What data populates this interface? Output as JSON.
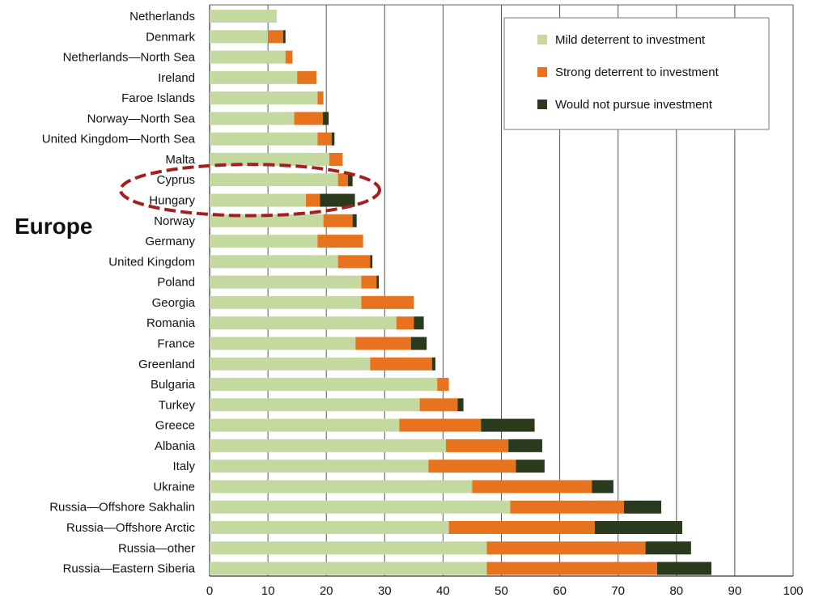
{
  "colors": {
    "mild": "#c4d9a0",
    "strong": "#e8731e",
    "would_not": "#2a3a1c",
    "grid": "#555555",
    "highlight": "#a41f1f"
  },
  "region_label": "Europe",
  "chart_data": {
    "type": "bar",
    "orientation": "horizontal",
    "stacked": true,
    "title": "",
    "xlabel": "",
    "ylabel": "",
    "xlim": [
      0,
      100
    ],
    "x_ticks": [
      "0",
      "10",
      "20",
      "30",
      "40",
      "50",
      "60",
      "70",
      "80",
      "90",
      "100"
    ],
    "grid": true,
    "legend_position": "top-right",
    "highlighted_categories": [
      "Cyprus",
      "Hungary"
    ],
    "categories": [
      "Netherlands",
      "Denmark",
      "Netherlands—North Sea",
      "Ireland",
      "Faroe Islands",
      "Norway—North Sea",
      "United Kingdom—North Sea",
      "Malta",
      "Cyprus",
      "Hungary",
      "Norway",
      "Germany",
      "United Kingdom",
      "Poland",
      "Georgia",
      "Romania",
      "France",
      "Greenland",
      "Bulgaria",
      "Turkey",
      "Greece",
      "Albania",
      "Italy",
      "Ukraine",
      "Russia—Offshore Sakhalin",
      "Russia—Offshore Arctic",
      "Russia—other",
      "Russia—Eastern Siberia"
    ],
    "series": [
      {
        "name": "Mild deterrent to investment",
        "values": [
          11.5,
          10,
          13,
          15,
          18.5,
          14.5,
          18.5,
          20.5,
          22,
          16.5,
          19.5,
          18.5,
          22,
          26,
          26,
          32,
          25,
          27.5,
          39,
          36,
          32.5,
          40.5,
          37.5,
          45,
          51.5,
          41,
          47.5,
          47.5
        ]
      },
      {
        "name": "Strong deterrent to investment",
        "values": [
          0,
          2.6,
          1.2,
          3.3,
          1.0,
          4.9,
          2.4,
          2.3,
          1.7,
          2.4,
          5.0,
          7.8,
          5.5,
          2.6,
          9.0,
          3.0,
          9.5,
          10.6,
          2.0,
          6.5,
          14.0,
          10.7,
          15.0,
          20.5,
          19.5,
          25.0,
          27.2,
          29.2
        ]
      },
      {
        "name": "Would not pursue investment",
        "values": [
          0,
          0.4,
          0,
          0,
          0,
          1.0,
          0.5,
          0,
          0.8,
          6.0,
          0.7,
          0,
          0.4,
          0.4,
          0,
          1.7,
          2.7,
          0.6,
          0,
          1.0,
          9.2,
          5.8,
          4.9,
          3.7,
          6.4,
          15.0,
          7.8,
          9.3
        ]
      }
    ]
  }
}
